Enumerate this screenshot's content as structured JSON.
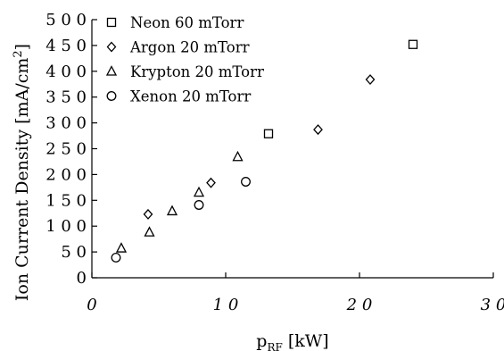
{
  "chart_data": {
    "type": "scatter",
    "xlabel": {
      "main": "p",
      "sub": "RF",
      "unit": " [kW]"
    },
    "ylabel": {
      "main": "Ion Current Density [mA/cm",
      "sup": "2",
      "end": "]"
    },
    "xlim": [
      0,
      30
    ],
    "ylim": [
      0,
      500
    ],
    "x_ticks": [
      0,
      10,
      20,
      30
    ],
    "x_tick_labels": [
      "0",
      "1 0",
      "2 0",
      "3 0"
    ],
    "y_ticks": [
      0,
      50,
      100,
      150,
      200,
      250,
      300,
      350,
      400,
      450,
      500
    ],
    "y_tick_labels": [
      "0",
      "5 0",
      "1 0 0",
      "1 5 0",
      "2 0 0",
      "2 5 0",
      "3 0 0",
      "3 5 0",
      "4 0 0",
      "4 5 0",
      "5 0 0"
    ],
    "grid": false,
    "legend_position": "top-left",
    "series": [
      {
        "name": "Neon 60 mTorr",
        "marker": "square",
        "points": [
          [
            13.2,
            279
          ],
          [
            24.0,
            452
          ]
        ]
      },
      {
        "name": "Argon 20 mTorr",
        "marker": "diamond",
        "points": [
          [
            4.2,
            123
          ],
          [
            8.9,
            184
          ],
          [
            16.9,
            287
          ],
          [
            20.8,
            384
          ]
        ]
      },
      {
        "name": "Krypton 20 mTorr",
        "marker": "triangle",
        "points": [
          [
            2.2,
            57
          ],
          [
            4.3,
            88
          ],
          [
            6.0,
            129
          ],
          [
            8.0,
            165
          ],
          [
            10.9,
            234
          ]
        ]
      },
      {
        "name": "Xenon 20 mTorr",
        "marker": "circle",
        "points": [
          [
            1.8,
            39
          ],
          [
            8.0,
            141
          ],
          [
            11.5,
            186
          ]
        ]
      }
    ]
  }
}
